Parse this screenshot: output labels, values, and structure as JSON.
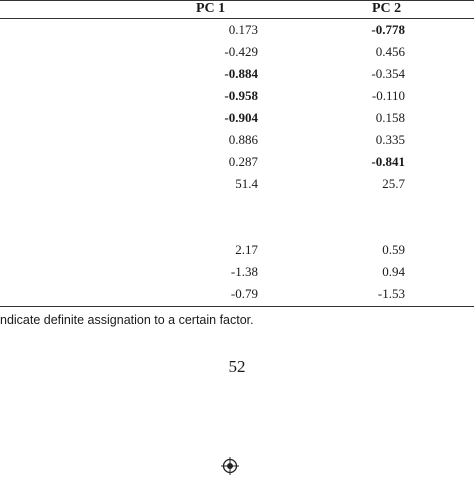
{
  "table": {
    "headers": [
      "PC 1",
      "PC 2"
    ],
    "rows": [
      {
        "pc1": "0.173",
        "pc1_bold": false,
        "pc2": "-0.778",
        "pc2_bold": true
      },
      {
        "pc1": "-0.429",
        "pc1_bold": false,
        "pc2": "0.456",
        "pc2_bold": false
      },
      {
        "pc1": "-0.884",
        "pc1_bold": true,
        "pc2": "-0.354",
        "pc2_bold": false
      },
      {
        "pc1": "-0.958",
        "pc1_bold": true,
        "pc2": "-0.110",
        "pc2_bold": false
      },
      {
        "pc1": "-0.904",
        "pc1_bold": true,
        "pc2": "0.158",
        "pc2_bold": false
      },
      {
        "pc1": "0.886",
        "pc1_bold": false,
        "pc2": "0.335",
        "pc2_bold": false
      },
      {
        "pc1": "0.287",
        "pc1_bold": false,
        "pc2": "-0.841",
        "pc2_bold": true
      },
      {
        "pc1": "51.4",
        "pc1_bold": false,
        "pc2": "25.7",
        "pc2_bold": false
      },
      {
        "pc1": "2.17",
        "pc1_bold": false,
        "pc2": "0.59",
        "pc2_bold": false
      },
      {
        "pc1": "-1.38",
        "pc1_bold": false,
        "pc2": "0.94",
        "pc2_bold": false
      },
      {
        "pc1": "-0.79",
        "pc1_bold": false,
        "pc2": "-1.53",
        "pc2_bold": false
      }
    ]
  },
  "footnote": "ndicate definite assignation to a certain factor.",
  "page_number": "52",
  "registration_mark_icon": "crosshair-target-icon"
}
